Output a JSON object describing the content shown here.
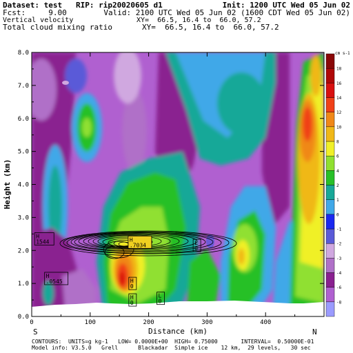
{
  "header": {
    "dataset_line": "Dataset: test   RIP: rip20020605 d1",
    "init_line": "Init: 1200 UTC Wed 05 Jun 02",
    "fcst_line": "Fcst:     9.00",
    "valid_line": "Valid: 2100 UTC Wed 05 Jun 02 (1600 CDT Wed 05 Jun 02)",
    "field1_line": "Vertical velocity",
    "xy1_line": "XY=  66.5, 16.4 to  66.0, 57.2",
    "field2_line": "Total cloud mixing ratio",
    "xy2_line": "XY=  66.5, 16.4 to  66.0, 57.2"
  },
  "footer": {
    "contours_line": "CONTOURS:  UNITS=g kg-1   LOW= 0.0000E+00  HIGH= 0.75000       INTERVAL=  0.50000E-01",
    "model_line": "Model info: V3.5.0   Grell      Blackadar  Simple ice    12 km,  29 levels,   30 sec"
  },
  "chart_data": {
    "type": "heatmap",
    "xlabel": "Distance (km)",
    "ylabel": "Height (km)",
    "xlim": [
      0,
      500
    ],
    "ylim": [
      0,
      8
    ],
    "xticks": [
      "0",
      "100",
      "200",
      "300",
      "400"
    ],
    "yticks": [
      "0.0",
      "1.0",
      "2.0",
      "3.0",
      "4.0",
      "5.0",
      "6.0",
      "7.0",
      "8.0"
    ],
    "left_endpoint_label": "S",
    "right_endpoint_label": "N",
    "colorbar": {
      "unit": "cm s-1",
      "levels": [
        "-8",
        "-6",
        "-4",
        "-3",
        "-2",
        "-1",
        "0",
        "1",
        "2",
        "4",
        "6",
        "8",
        "10",
        "12",
        "14",
        "16",
        "18"
      ],
      "colors": [
        "#9b9bff",
        "#b060d0",
        "#8a2090",
        "#b070c8",
        "#d0a8e0",
        "#5a5ad8",
        "#1a28f0",
        "#40a8e8",
        "#18a898",
        "#28c028",
        "#90e030",
        "#f0f028",
        "#f0b818",
        "#f08818",
        "#f04018",
        "#d81010",
        "#b00808",
        "#8a0808"
      ]
    },
    "extremum_labels": [
      {
        "kind": "H",
        "value": "1544",
        "x": 5,
        "y": 2.35
      },
      {
        "kind": "H",
        "value": ".7034",
        "x": 165,
        "y": 2.25
      },
      {
        "kind": "H",
        "value": ".0545",
        "x": 22,
        "y": 1.15
      },
      {
        "kind": "H",
        "value": "0",
        "x": 172,
        "y": 1.0
      },
      {
        "kind": "H",
        "value": "0",
        "x": 172,
        "y": 0.5
      },
      {
        "kind": "L",
        "value": "0",
        "x": 220,
        "y": 0.55
      },
      {
        "kind": "L",
        "value": "0",
        "x": 282,
        "y": 2.15
      }
    ],
    "cloud_contour_levels": [
      0.05,
      0.1,
      0.15,
      0.2,
      0.25,
      0.3,
      0.35,
      0.4,
      0.45,
      0.5,
      0.55,
      0.6,
      0.65,
      0.7
    ]
  }
}
